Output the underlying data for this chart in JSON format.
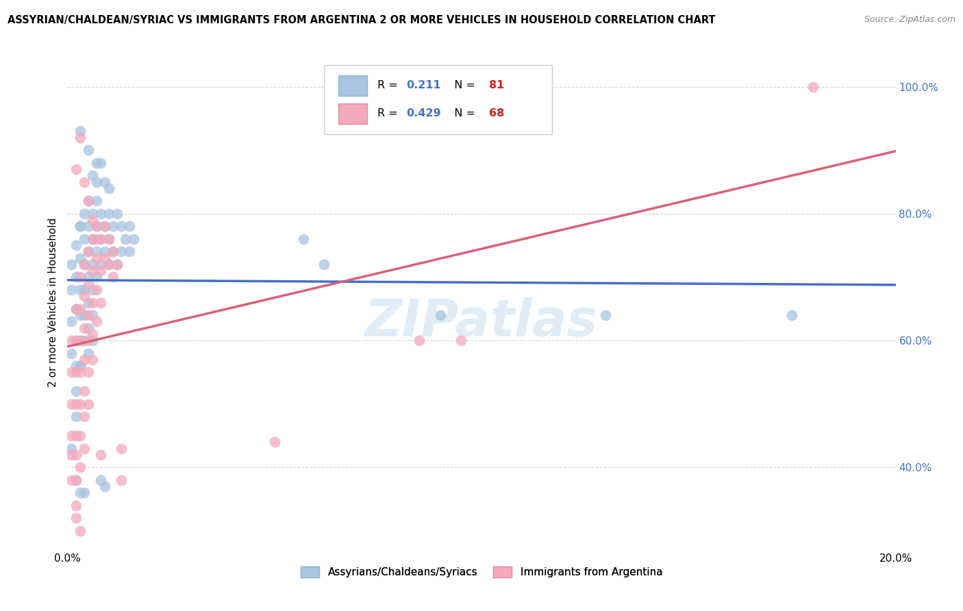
{
  "title": "ASSYRIAN/CHALDEAN/SYRIAC VS IMMIGRANTS FROM ARGENTINA 2 OR MORE VEHICLES IN HOUSEHOLD CORRELATION CHART",
  "source": "Source: ZipAtlas.com",
  "ylabel": "2 or more Vehicles in Household",
  "xlim": [
    0.0,
    0.2
  ],
  "ylim": [
    0.27,
    1.05
  ],
  "ytick_vals": [
    0.4,
    0.6,
    0.8,
    1.0
  ],
  "ytick_labels": [
    "40.0%",
    "60.0%",
    "80.0%",
    "100.0%"
  ],
  "xtick_vals": [
    0.0,
    0.05,
    0.1,
    0.15,
    0.2
  ],
  "xtick_labels": [
    "0.0%",
    "",
    "",
    "",
    "20.0%"
  ],
  "r_blue": 0.211,
  "n_blue": 81,
  "r_pink": 0.429,
  "n_pink": 68,
  "blue_color": "#a8c4e0",
  "pink_color": "#f4a8bc",
  "blue_line_color": "#4472c4",
  "pink_line_color": "#d9607a",
  "blue_tick_color": "#4472c4",
  "watermark": "ZIPatlas",
  "blue_scatter": [
    [
      0.001,
      0.68
    ],
    [
      0.001,
      0.72
    ],
    [
      0.001,
      0.63
    ],
    [
      0.001,
      0.58
    ],
    [
      0.002,
      0.75
    ],
    [
      0.002,
      0.7
    ],
    [
      0.002,
      0.65
    ],
    [
      0.002,
      0.6
    ],
    [
      0.002,
      0.56
    ],
    [
      0.002,
      0.52
    ],
    [
      0.002,
      0.48
    ],
    [
      0.003,
      0.78
    ],
    [
      0.003,
      0.73
    ],
    [
      0.003,
      0.68
    ],
    [
      0.003,
      0.64
    ],
    [
      0.003,
      0.6
    ],
    [
      0.003,
      0.56
    ],
    [
      0.003,
      0.78
    ],
    [
      0.004,
      0.8
    ],
    [
      0.004,
      0.76
    ],
    [
      0.004,
      0.72
    ],
    [
      0.004,
      0.68
    ],
    [
      0.004,
      0.64
    ],
    [
      0.004,
      0.6
    ],
    [
      0.005,
      0.82
    ],
    [
      0.005,
      0.78
    ],
    [
      0.005,
      0.74
    ],
    [
      0.005,
      0.7
    ],
    [
      0.005,
      0.66
    ],
    [
      0.005,
      0.62
    ],
    [
      0.005,
      0.58
    ],
    [
      0.006,
      0.8
    ],
    [
      0.006,
      0.76
    ],
    [
      0.006,
      0.72
    ],
    [
      0.006,
      0.68
    ],
    [
      0.006,
      0.64
    ],
    [
      0.006,
      0.6
    ],
    [
      0.007,
      0.82
    ],
    [
      0.007,
      0.78
    ],
    [
      0.007,
      0.74
    ],
    [
      0.007,
      0.7
    ],
    [
      0.007,
      0.85
    ],
    [
      0.008,
      0.8
    ],
    [
      0.008,
      0.76
    ],
    [
      0.008,
      0.72
    ],
    [
      0.009,
      0.78
    ],
    [
      0.009,
      0.74
    ],
    [
      0.01,
      0.8
    ],
    [
      0.01,
      0.76
    ],
    [
      0.01,
      0.72
    ],
    [
      0.011,
      0.78
    ],
    [
      0.011,
      0.74
    ],
    [
      0.012,
      0.8
    ],
    [
      0.012,
      0.72
    ],
    [
      0.013,
      0.78
    ],
    [
      0.013,
      0.74
    ],
    [
      0.014,
      0.76
    ],
    [
      0.015,
      0.78
    ],
    [
      0.015,
      0.74
    ],
    [
      0.016,
      0.76
    ],
    [
      0.003,
      0.93
    ],
    [
      0.005,
      0.9
    ],
    [
      0.006,
      0.86
    ],
    [
      0.007,
      0.88
    ],
    [
      0.008,
      0.88
    ],
    [
      0.009,
      0.85
    ],
    [
      0.01,
      0.84
    ],
    [
      0.001,
      0.43
    ],
    [
      0.002,
      0.38
    ],
    [
      0.003,
      0.36
    ],
    [
      0.004,
      0.36
    ],
    [
      0.008,
      0.38
    ],
    [
      0.009,
      0.37
    ],
    [
      0.003,
      0.56
    ],
    [
      0.057,
      0.76
    ],
    [
      0.062,
      0.72
    ],
    [
      0.09,
      0.64
    ],
    [
      0.13,
      0.64
    ],
    [
      0.175,
      0.64
    ]
  ],
  "pink_scatter": [
    [
      0.001,
      0.6
    ],
    [
      0.001,
      0.55
    ],
    [
      0.001,
      0.5
    ],
    [
      0.001,
      0.45
    ],
    [
      0.001,
      0.42
    ],
    [
      0.001,
      0.38
    ],
    [
      0.002,
      0.65
    ],
    [
      0.002,
      0.6
    ],
    [
      0.002,
      0.55
    ],
    [
      0.002,
      0.5
    ],
    [
      0.002,
      0.45
    ],
    [
      0.002,
      0.42
    ],
    [
      0.002,
      0.38
    ],
    [
      0.002,
      0.34
    ],
    [
      0.003,
      0.7
    ],
    [
      0.003,
      0.65
    ],
    [
      0.003,
      0.6
    ],
    [
      0.003,
      0.55
    ],
    [
      0.003,
      0.5
    ],
    [
      0.003,
      0.45
    ],
    [
      0.003,
      0.4
    ],
    [
      0.004,
      0.72
    ],
    [
      0.004,
      0.67
    ],
    [
      0.004,
      0.62
    ],
    [
      0.004,
      0.57
    ],
    [
      0.004,
      0.52
    ],
    [
      0.004,
      0.48
    ],
    [
      0.004,
      0.43
    ],
    [
      0.005,
      0.74
    ],
    [
      0.005,
      0.69
    ],
    [
      0.005,
      0.64
    ],
    [
      0.005,
      0.6
    ],
    [
      0.005,
      0.55
    ],
    [
      0.005,
      0.5
    ],
    [
      0.006,
      0.76
    ],
    [
      0.006,
      0.71
    ],
    [
      0.006,
      0.66
    ],
    [
      0.006,
      0.61
    ],
    [
      0.006,
      0.57
    ],
    [
      0.007,
      0.78
    ],
    [
      0.007,
      0.73
    ],
    [
      0.007,
      0.68
    ],
    [
      0.007,
      0.63
    ],
    [
      0.008,
      0.76
    ],
    [
      0.008,
      0.71
    ],
    [
      0.008,
      0.66
    ],
    [
      0.009,
      0.78
    ],
    [
      0.009,
      0.73
    ],
    [
      0.01,
      0.76
    ],
    [
      0.01,
      0.72
    ],
    [
      0.011,
      0.74
    ],
    [
      0.011,
      0.7
    ],
    [
      0.012,
      0.72
    ],
    [
      0.002,
      0.87
    ],
    [
      0.003,
      0.92
    ],
    [
      0.004,
      0.85
    ],
    [
      0.005,
      0.82
    ],
    [
      0.006,
      0.79
    ],
    [
      0.007,
      0.76
    ],
    [
      0.002,
      0.32
    ],
    [
      0.003,
      0.3
    ],
    [
      0.008,
      0.42
    ],
    [
      0.013,
      0.43
    ],
    [
      0.013,
      0.38
    ],
    [
      0.05,
      0.44
    ],
    [
      0.085,
      0.6
    ],
    [
      0.095,
      0.6
    ],
    [
      0.18,
      1.0
    ]
  ]
}
